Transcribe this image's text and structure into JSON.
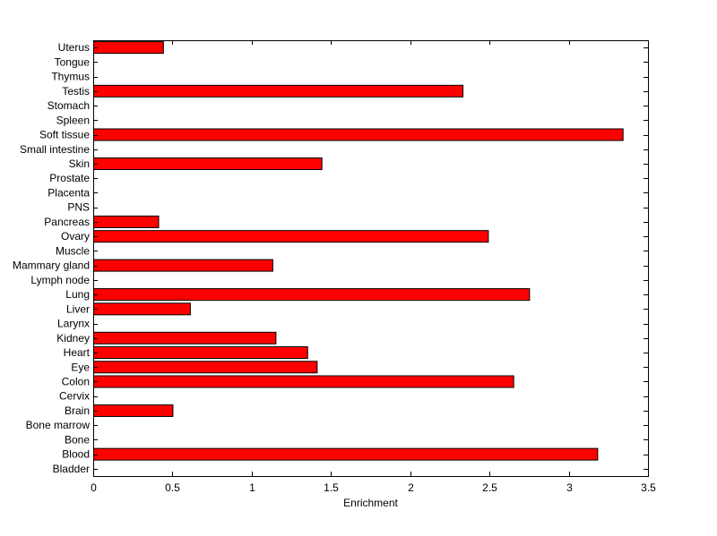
{
  "chart_data": {
    "type": "bar",
    "orientation": "horizontal",
    "title": "",
    "xlabel": "Enrichment",
    "ylabel": "",
    "xlim": [
      0,
      3.5
    ],
    "xticks": [
      "0",
      "0.5",
      "1",
      "1.5",
      "2",
      "2.5",
      "3",
      "3.5"
    ],
    "grid": false,
    "bar_color": "#ff0000",
    "categories": [
      "Bladder",
      "Blood",
      "Bone",
      "Bone marrow",
      "Brain",
      "Cervix",
      "Colon",
      "Eye",
      "Heart",
      "Kidney",
      "Larynx",
      "Liver",
      "Lung",
      "Lymph node",
      "Mammary gland",
      "Muscle",
      "Ovary",
      "Pancreas",
      "PNS",
      "Placenta",
      "Prostate",
      "Skin",
      "Small intestine",
      "Soft tissue",
      "Spleen",
      "Stomach",
      "Testis",
      "Thymus",
      "Tongue",
      "Uterus"
    ],
    "values": [
      0,
      3.18,
      0,
      0,
      0.5,
      0,
      2.65,
      1.41,
      1.35,
      1.15,
      0,
      0.61,
      2.75,
      0,
      1.13,
      0,
      2.49,
      0.41,
      0,
      0,
      0,
      1.44,
      0,
      3.34,
      0,
      0,
      2.33,
      0,
      0,
      0.44
    ]
  }
}
